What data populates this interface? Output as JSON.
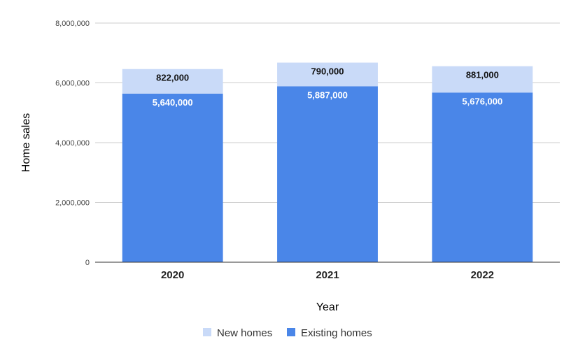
{
  "chart_data": {
    "type": "bar",
    "stacked": true,
    "categories": [
      "2020",
      "2021",
      "2022"
    ],
    "series": [
      {
        "name": "Existing homes",
        "values": [
          5640000,
          5887000,
          5676000
        ],
        "color": "#4a86e8",
        "labels": [
          "5,640,000",
          "5,887,000",
          "5,676,000"
        ]
      },
      {
        "name": "New homes",
        "values": [
          822000,
          790000,
          881000
        ],
        "color": "#c9daf8",
        "labels": [
          "822,000",
          "790,000",
          "881,000"
        ]
      }
    ],
    "xlabel": "Year",
    "ylabel": "Home sales",
    "ylim": [
      0,
      8000000
    ],
    "yticks": [
      0,
      2000000,
      4000000,
      6000000,
      8000000
    ],
    "ytick_labels": [
      "0",
      "2,000,000",
      "4,000,000",
      "6,000,000",
      "8,000,000"
    ],
    "grid": true,
    "legend": {
      "position": "bottom",
      "entries": [
        "New homes",
        "Existing homes"
      ]
    }
  }
}
